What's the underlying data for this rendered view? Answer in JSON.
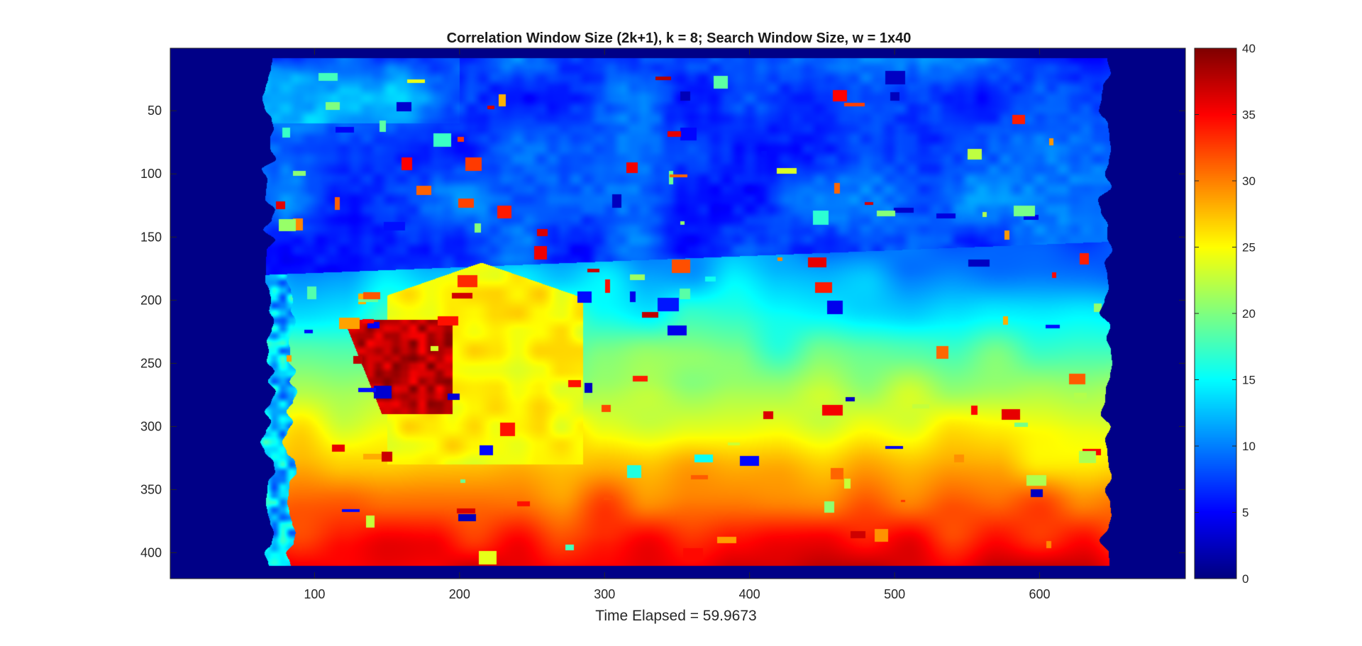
{
  "chart_data": {
    "type": "heatmap",
    "title": "Correlation Window Size (2k+1), k = 8; Search Window Size, w = 1x40",
    "xlabel": "Time Elapsed = 59.9673",
    "ylabel": "",
    "xlim": [
      0.5,
      700.5
    ],
    "ylim": [
      0.5,
      420.5
    ],
    "y_reversed": true,
    "x_ticks": [
      100,
      200,
      300,
      400,
      500,
      600
    ],
    "x_tick_labels": [
      "100",
      "200",
      "300",
      "400",
      "500",
      "600"
    ],
    "y_ticks": [
      50,
      100,
      150,
      200,
      250,
      300,
      350,
      400
    ],
    "y_tick_labels": [
      "50",
      "100",
      "150",
      "200",
      "250",
      "300",
      "350",
      "400"
    ],
    "colormap": "jet",
    "colorbar": {
      "range": [
        0,
        40
      ],
      "ticks": [
        0,
        5,
        10,
        15,
        20,
        25,
        30,
        35,
        40
      ],
      "tick_labels": [
        "0",
        "5",
        "10",
        "15",
        "20",
        "25",
        "30",
        "35",
        "40"
      ]
    },
    "grid": false,
    "image_description": "Disparity map: dark blue border (value ~0) on left (x<65) and right (x>645); upper region (y<170) mostly values 3-10; lower region increases from ~12 near y=190 to ~35-38 at y=410; yellow (~25) object x=150-280, y=170-330; dark red (~38) patch x=120-195, y=215-285"
  }
}
